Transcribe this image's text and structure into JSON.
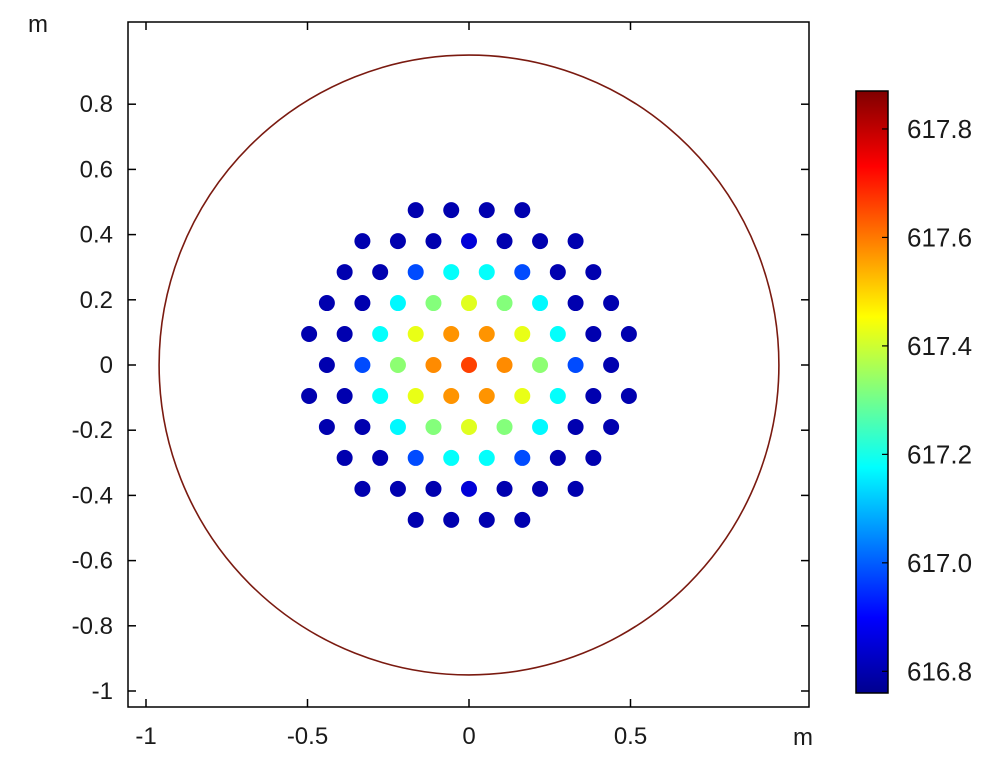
{
  "chart_data": {
    "type": "scatter",
    "title": "",
    "x_unit_label": "m",
    "y_unit_label": "m",
    "xlim": [
      -1.05,
      1.05
    ],
    "ylim": [
      -1.05,
      1.05
    ],
    "x_ticks": [
      -1,
      -0.5,
      0,
      0.5
    ],
    "x_tick_labels": [
      "-1",
      "-0.5",
      "0",
      "0.5"
    ],
    "y_ticks": [
      0.8,
      0.6,
      0.4,
      0.2,
      0,
      -0.2,
      -0.4,
      -0.6,
      -0.8,
      -1
    ],
    "y_tick_labels": [
      "0.8",
      "0.6",
      "0.4",
      "0.2",
      "0",
      "-0.2",
      "-0.4",
      "-0.6",
      "-0.8",
      "-1"
    ],
    "grid": false,
    "boundary_circle": {
      "center": [
        0,
        0
      ],
      "radius": 0.955,
      "color": "#7a1a10"
    },
    "colormap": "jet",
    "color_range": [
      616.76,
      617.87
    ],
    "colorbar_ticks": [
      617.8,
      617.6,
      617.4,
      617.2,
      617.0,
      616.8
    ],
    "colorbar_tick_labels": [
      "617.8",
      "617.6",
      "617.4",
      "617.2",
      "617.0",
      "616.8"
    ],
    "rows": [
      {
        "y": 0.475,
        "x": [
          -0.165,
          -0.055,
          0.055,
          0.165
        ],
        "values": [
          616.8,
          616.8,
          616.8,
          616.8
        ]
      },
      {
        "y": 0.38,
        "x": [
          -0.33,
          -0.22,
          -0.11,
          0,
          0.11,
          0.22,
          0.33
        ],
        "values": [
          616.8,
          616.8,
          616.8,
          616.85,
          616.8,
          616.8,
          616.8
        ]
      },
      {
        "y": 0.285,
        "x": [
          -0.385,
          -0.275,
          -0.165,
          -0.055,
          0.055,
          0.165,
          0.275,
          0.385
        ],
        "values": [
          616.8,
          616.8,
          616.98,
          617.18,
          617.18,
          616.98,
          616.8,
          616.8
        ]
      },
      {
        "y": 0.19,
        "x": [
          -0.44,
          -0.33,
          -0.22,
          -0.11,
          0,
          0.11,
          0.22,
          0.33,
          0.44
        ],
        "values": [
          616.8,
          616.8,
          617.17,
          617.32,
          617.42,
          617.32,
          617.17,
          616.8,
          616.8
        ]
      },
      {
        "y": 0.095,
        "x": [
          -0.495,
          -0.385,
          -0.275,
          -0.165,
          -0.055,
          0.055,
          0.165,
          0.275,
          0.385,
          0.495
        ],
        "values": [
          616.8,
          616.8,
          617.18,
          617.43,
          617.57,
          617.57,
          617.43,
          617.18,
          616.8,
          616.8
        ]
      },
      {
        "y": 0,
        "x": [
          -0.44,
          -0.33,
          -0.22,
          -0.11,
          0,
          0.11,
          0.22,
          0.33,
          0.44
        ],
        "values": [
          616.8,
          616.98,
          617.33,
          617.58,
          617.66,
          617.58,
          617.33,
          616.98,
          616.8
        ]
      },
      {
        "y": -0.095,
        "x": [
          -0.495,
          -0.385,
          -0.275,
          -0.165,
          -0.055,
          0.055,
          0.165,
          0.275,
          0.385,
          0.495
        ],
        "values": [
          616.8,
          616.8,
          617.18,
          617.43,
          617.57,
          617.57,
          617.43,
          617.18,
          616.8,
          616.8
        ]
      },
      {
        "y": -0.19,
        "x": [
          -0.44,
          -0.33,
          -0.22,
          -0.11,
          0,
          0.11,
          0.22,
          0.33,
          0.44
        ],
        "values": [
          616.8,
          616.8,
          617.17,
          617.32,
          617.42,
          617.32,
          617.17,
          616.8,
          616.8
        ]
      },
      {
        "y": -0.285,
        "x": [
          -0.385,
          -0.275,
          -0.165,
          -0.055,
          0.055,
          0.165,
          0.275,
          0.385
        ],
        "values": [
          616.8,
          616.8,
          616.98,
          617.18,
          617.18,
          616.98,
          616.8,
          616.8
        ]
      },
      {
        "y": -0.38,
        "x": [
          -0.33,
          -0.22,
          -0.11,
          0,
          0.11,
          0.22,
          0.33
        ],
        "values": [
          616.8,
          616.8,
          616.8,
          616.85,
          616.8,
          616.8,
          616.8
        ]
      },
      {
        "y": -0.475,
        "x": [
          -0.165,
          -0.055,
          0.055,
          0.165
        ],
        "values": [
          616.8,
          616.8,
          616.8,
          616.8
        ]
      }
    ]
  }
}
